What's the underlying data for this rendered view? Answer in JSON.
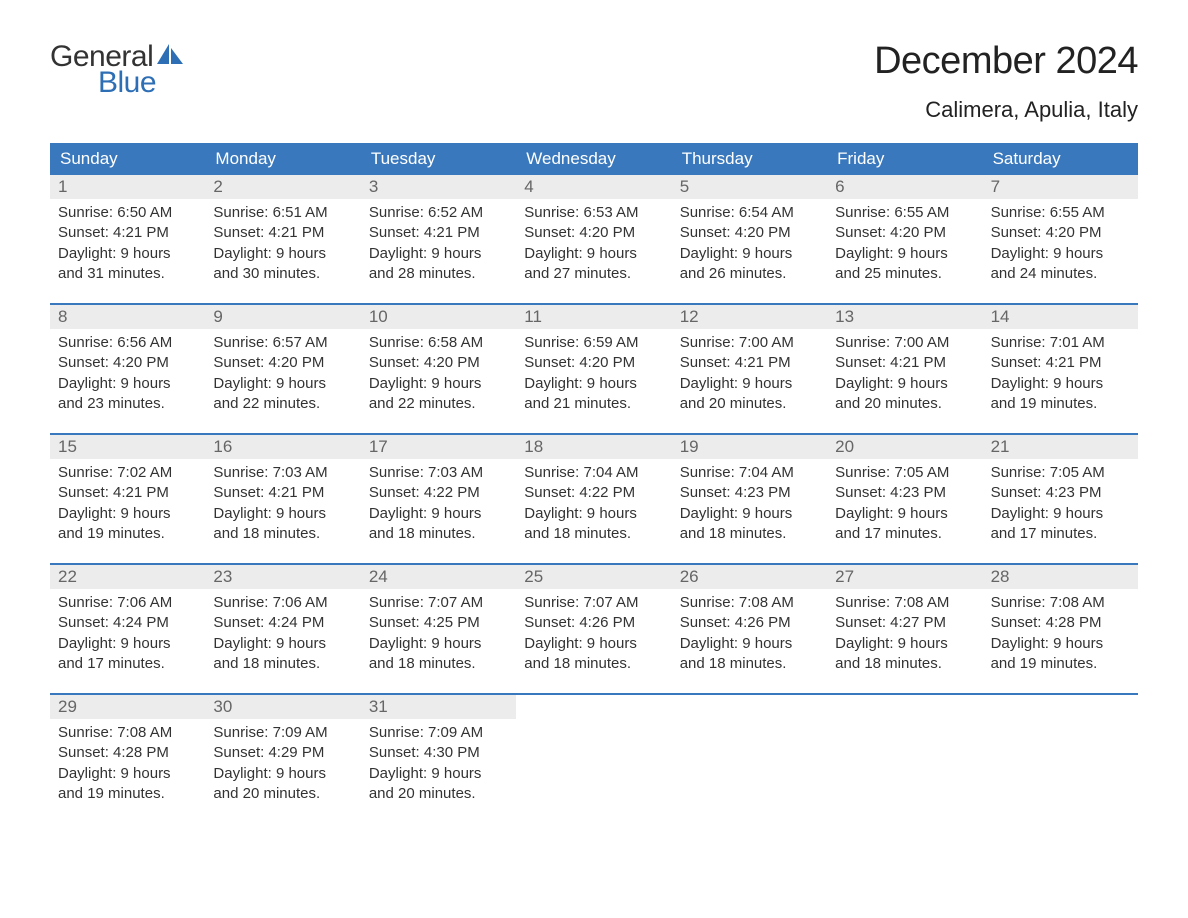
{
  "logo": {
    "word1": "General",
    "word2": "Blue",
    "text_color": "#333333",
    "accent_color": "#2d6eb5"
  },
  "title": "December 2024",
  "location": "Calimera, Apulia, Italy",
  "colors": {
    "header_bg": "#3a78bd",
    "header_text": "#ffffff",
    "daynum_bg": "#ececec",
    "daynum_text": "#666666",
    "body_text": "#333333",
    "week_border": "#3a78bd",
    "page_bg": "#ffffff"
  },
  "weekdays": [
    "Sunday",
    "Monday",
    "Tuesday",
    "Wednesday",
    "Thursday",
    "Friday",
    "Saturday"
  ],
  "weeks": [
    [
      {
        "num": "1",
        "sunrise": "Sunrise: 6:50 AM",
        "sunset": "Sunset: 4:21 PM",
        "daylight1": "Daylight: 9 hours",
        "daylight2": "and 31 minutes."
      },
      {
        "num": "2",
        "sunrise": "Sunrise: 6:51 AM",
        "sunset": "Sunset: 4:21 PM",
        "daylight1": "Daylight: 9 hours",
        "daylight2": "and 30 minutes."
      },
      {
        "num": "3",
        "sunrise": "Sunrise: 6:52 AM",
        "sunset": "Sunset: 4:21 PM",
        "daylight1": "Daylight: 9 hours",
        "daylight2": "and 28 minutes."
      },
      {
        "num": "4",
        "sunrise": "Sunrise: 6:53 AM",
        "sunset": "Sunset: 4:20 PM",
        "daylight1": "Daylight: 9 hours",
        "daylight2": "and 27 minutes."
      },
      {
        "num": "5",
        "sunrise": "Sunrise: 6:54 AM",
        "sunset": "Sunset: 4:20 PM",
        "daylight1": "Daylight: 9 hours",
        "daylight2": "and 26 minutes."
      },
      {
        "num": "6",
        "sunrise": "Sunrise: 6:55 AM",
        "sunset": "Sunset: 4:20 PM",
        "daylight1": "Daylight: 9 hours",
        "daylight2": "and 25 minutes."
      },
      {
        "num": "7",
        "sunrise": "Sunrise: 6:55 AM",
        "sunset": "Sunset: 4:20 PM",
        "daylight1": "Daylight: 9 hours",
        "daylight2": "and 24 minutes."
      }
    ],
    [
      {
        "num": "8",
        "sunrise": "Sunrise: 6:56 AM",
        "sunset": "Sunset: 4:20 PM",
        "daylight1": "Daylight: 9 hours",
        "daylight2": "and 23 minutes."
      },
      {
        "num": "9",
        "sunrise": "Sunrise: 6:57 AM",
        "sunset": "Sunset: 4:20 PM",
        "daylight1": "Daylight: 9 hours",
        "daylight2": "and 22 minutes."
      },
      {
        "num": "10",
        "sunrise": "Sunrise: 6:58 AM",
        "sunset": "Sunset: 4:20 PM",
        "daylight1": "Daylight: 9 hours",
        "daylight2": "and 22 minutes."
      },
      {
        "num": "11",
        "sunrise": "Sunrise: 6:59 AM",
        "sunset": "Sunset: 4:20 PM",
        "daylight1": "Daylight: 9 hours",
        "daylight2": "and 21 minutes."
      },
      {
        "num": "12",
        "sunrise": "Sunrise: 7:00 AM",
        "sunset": "Sunset: 4:21 PM",
        "daylight1": "Daylight: 9 hours",
        "daylight2": "and 20 minutes."
      },
      {
        "num": "13",
        "sunrise": "Sunrise: 7:00 AM",
        "sunset": "Sunset: 4:21 PM",
        "daylight1": "Daylight: 9 hours",
        "daylight2": "and 20 minutes."
      },
      {
        "num": "14",
        "sunrise": "Sunrise: 7:01 AM",
        "sunset": "Sunset: 4:21 PM",
        "daylight1": "Daylight: 9 hours",
        "daylight2": "and 19 minutes."
      }
    ],
    [
      {
        "num": "15",
        "sunrise": "Sunrise: 7:02 AM",
        "sunset": "Sunset: 4:21 PM",
        "daylight1": "Daylight: 9 hours",
        "daylight2": "and 19 minutes."
      },
      {
        "num": "16",
        "sunrise": "Sunrise: 7:03 AM",
        "sunset": "Sunset: 4:21 PM",
        "daylight1": "Daylight: 9 hours",
        "daylight2": "and 18 minutes."
      },
      {
        "num": "17",
        "sunrise": "Sunrise: 7:03 AM",
        "sunset": "Sunset: 4:22 PM",
        "daylight1": "Daylight: 9 hours",
        "daylight2": "and 18 minutes."
      },
      {
        "num": "18",
        "sunrise": "Sunrise: 7:04 AM",
        "sunset": "Sunset: 4:22 PM",
        "daylight1": "Daylight: 9 hours",
        "daylight2": "and 18 minutes."
      },
      {
        "num": "19",
        "sunrise": "Sunrise: 7:04 AM",
        "sunset": "Sunset: 4:23 PM",
        "daylight1": "Daylight: 9 hours",
        "daylight2": "and 18 minutes."
      },
      {
        "num": "20",
        "sunrise": "Sunrise: 7:05 AM",
        "sunset": "Sunset: 4:23 PM",
        "daylight1": "Daylight: 9 hours",
        "daylight2": "and 17 minutes."
      },
      {
        "num": "21",
        "sunrise": "Sunrise: 7:05 AM",
        "sunset": "Sunset: 4:23 PM",
        "daylight1": "Daylight: 9 hours",
        "daylight2": "and 17 minutes."
      }
    ],
    [
      {
        "num": "22",
        "sunrise": "Sunrise: 7:06 AM",
        "sunset": "Sunset: 4:24 PM",
        "daylight1": "Daylight: 9 hours",
        "daylight2": "and 17 minutes."
      },
      {
        "num": "23",
        "sunrise": "Sunrise: 7:06 AM",
        "sunset": "Sunset: 4:24 PM",
        "daylight1": "Daylight: 9 hours",
        "daylight2": "and 18 minutes."
      },
      {
        "num": "24",
        "sunrise": "Sunrise: 7:07 AM",
        "sunset": "Sunset: 4:25 PM",
        "daylight1": "Daylight: 9 hours",
        "daylight2": "and 18 minutes."
      },
      {
        "num": "25",
        "sunrise": "Sunrise: 7:07 AM",
        "sunset": "Sunset: 4:26 PM",
        "daylight1": "Daylight: 9 hours",
        "daylight2": "and 18 minutes."
      },
      {
        "num": "26",
        "sunrise": "Sunrise: 7:08 AM",
        "sunset": "Sunset: 4:26 PM",
        "daylight1": "Daylight: 9 hours",
        "daylight2": "and 18 minutes."
      },
      {
        "num": "27",
        "sunrise": "Sunrise: 7:08 AM",
        "sunset": "Sunset: 4:27 PM",
        "daylight1": "Daylight: 9 hours",
        "daylight2": "and 18 minutes."
      },
      {
        "num": "28",
        "sunrise": "Sunrise: 7:08 AM",
        "sunset": "Sunset: 4:28 PM",
        "daylight1": "Daylight: 9 hours",
        "daylight2": "and 19 minutes."
      }
    ],
    [
      {
        "num": "29",
        "sunrise": "Sunrise: 7:08 AM",
        "sunset": "Sunset: 4:28 PM",
        "daylight1": "Daylight: 9 hours",
        "daylight2": "and 19 minutes."
      },
      {
        "num": "30",
        "sunrise": "Sunrise: 7:09 AM",
        "sunset": "Sunset: 4:29 PM",
        "daylight1": "Daylight: 9 hours",
        "daylight2": "and 20 minutes."
      },
      {
        "num": "31",
        "sunrise": "Sunrise: 7:09 AM",
        "sunset": "Sunset: 4:30 PM",
        "daylight1": "Daylight: 9 hours",
        "daylight2": "and 20 minutes."
      },
      null,
      null,
      null,
      null
    ]
  ]
}
